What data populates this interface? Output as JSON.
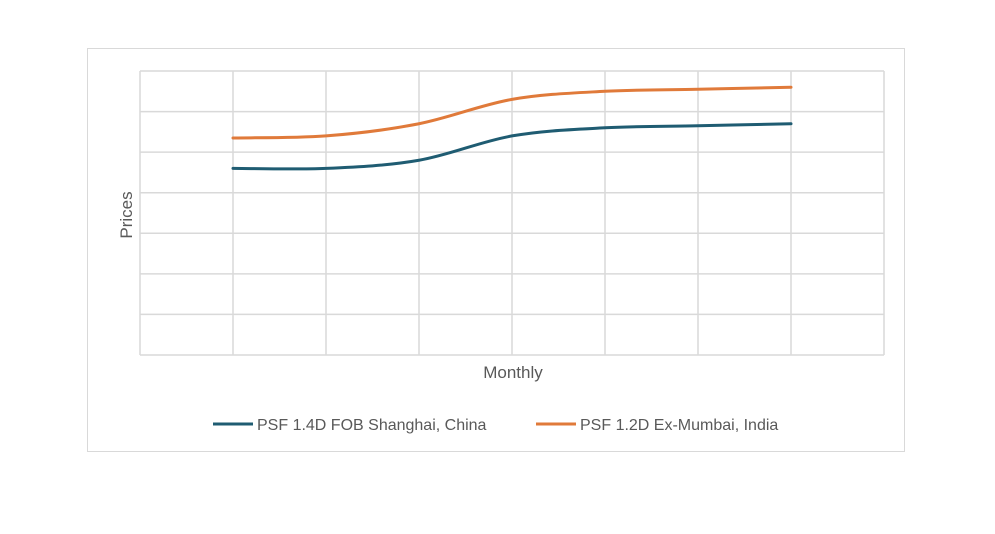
{
  "chart_data": {
    "type": "line",
    "title": "",
    "xlabel": "Monthly",
    "ylabel": "Prices",
    "x": [
      1,
      2,
      3,
      4,
      5,
      6,
      7
    ],
    "xlim": [
      0,
      8
    ],
    "ylim": [
      0,
      7
    ],
    "grid": true,
    "smooth": true,
    "legend_position": "bottom",
    "series": [
      {
        "name": "PSF 1.4D FOB Shanghai, China",
        "color": "#1f5c72",
        "values": [
          4.6,
          4.6,
          4.8,
          5.4,
          5.6,
          5.65,
          5.7
        ]
      },
      {
        "name": "PSF 1.2D Ex-Mumbai, India",
        "color": "#e07a3a",
        "values": [
          5.35,
          5.4,
          5.7,
          6.3,
          6.5,
          6.55,
          6.6
        ]
      }
    ]
  }
}
